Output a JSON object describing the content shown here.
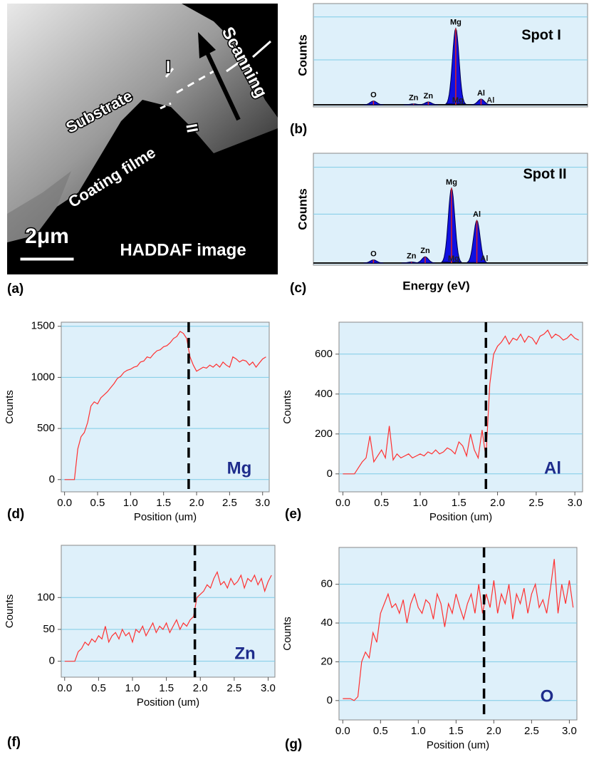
{
  "image_panel": {
    "panel_label": "(a)",
    "labels": [
      "Substrate",
      "Coating filme",
      "Scanning",
      "I",
      "II"
    ],
    "scale_bar": "2μm",
    "caption": "HADDAF image"
  },
  "chart_data": [
    {
      "type": "spectrum",
      "panel_label": "(b)",
      "title": "Spot I",
      "ylabel": "Counts",
      "color": "#1010e0",
      "xlim": [
        0,
        2.6
      ],
      "ylim": [
        0,
        100
      ],
      "peaks": [
        {
          "label": "O",
          "x": 0.57,
          "height": 4
        },
        {
          "label": "Zn",
          "x": 0.95,
          "height": 1
        },
        {
          "label": "Zn",
          "x": 1.09,
          "height": 3
        },
        {
          "label": "Mg",
          "x": 1.35,
          "height": 80
        },
        {
          "label": "Al",
          "x": 1.59,
          "height": 6
        }
      ],
      "markers": [
        {
          "label": "Mg",
          "x": 1.37
        },
        {
          "label": "Al",
          "x": 1.68
        }
      ]
    },
    {
      "type": "spectrum",
      "panel_label": "(c)",
      "title": "Spot II",
      "ylabel": "Counts",
      "xlabel": "Energy (eV)",
      "color": "#1010e0",
      "xlim": [
        0,
        2.6
      ],
      "ylim": [
        0,
        100
      ],
      "peaks": [
        {
          "label": "O",
          "x": 0.57,
          "height": 3
        },
        {
          "label": "Zn",
          "x": 0.93,
          "height": 1
        },
        {
          "label": "Zn",
          "x": 1.06,
          "height": 6
        },
        {
          "label": "Mg",
          "x": 1.31,
          "height": 72
        },
        {
          "label": "Al",
          "x": 1.55,
          "height": 41
        }
      ],
      "markers": [
        {
          "label": "Mg",
          "x": 1.33
        },
        {
          "label": "Al",
          "x": 1.62
        }
      ]
    },
    {
      "type": "line",
      "panel_label": "(d)",
      "element": "Mg",
      "xlabel": "Position (um)",
      "ylabel": "Counts",
      "color": "#ff3030",
      "grid": true,
      "boundary_x": 1.88,
      "xlim": [
        -0.05,
        3.1
      ],
      "ylim": [
        -120,
        1540
      ],
      "xticks": [
        {
          "value": 0,
          "label": "0.0"
        },
        0.5,
        {
          "value": 1,
          "label": "1.0"
        },
        1.5,
        {
          "value": 2,
          "label": "2.0"
        },
        2.5,
        {
          "value": 3,
          "label": "3.0"
        }
      ],
      "yticks": [
        0,
        500,
        1000,
        1500
      ],
      "x": [
        0,
        0.05,
        0.1,
        0.15,
        0.2,
        0.25,
        0.3,
        0.35,
        0.4,
        0.45,
        0.5,
        0.55,
        0.6,
        0.65,
        0.7,
        0.75,
        0.8,
        0.85,
        0.9,
        0.95,
        1,
        1.05,
        1.1,
        1.15,
        1.2,
        1.25,
        1.3,
        1.35,
        1.4,
        1.45,
        1.5,
        1.55,
        1.6,
        1.65,
        1.7,
        1.75,
        1.8,
        1.85,
        1.9,
        1.95,
        2,
        2.05,
        2.1,
        2.15,
        2.2,
        2.25,
        2.3,
        2.35,
        2.4,
        2.45,
        2.5,
        2.55,
        2.6,
        2.65,
        2.7,
        2.75,
        2.8,
        2.85,
        2.9,
        2.95,
        3,
        3.05
      ],
      "values": [
        0,
        0,
        0,
        0,
        300,
        420,
        460,
        560,
        720,
        760,
        740,
        800,
        830,
        860,
        900,
        940,
        990,
        1010,
        1050,
        1070,
        1080,
        1100,
        1110,
        1150,
        1160,
        1200,
        1190,
        1230,
        1260,
        1270,
        1300,
        1310,
        1340,
        1380,
        1400,
        1450,
        1430,
        1380,
        1200,
        1120,
        1060,
        1080,
        1100,
        1090,
        1120,
        1100,
        1130,
        1100,
        1150,
        1120,
        1100,
        1200,
        1180,
        1150,
        1170,
        1160,
        1120,
        1150,
        1100,
        1140,
        1180,
        1200
      ]
    },
    {
      "type": "line",
      "panel_label": "(e)",
      "element": "Al",
      "xlabel": "Position (um)",
      "ylabel": "Counts",
      "color": "#ff3030",
      "grid": true,
      "boundary_x": 1.85,
      "xlim": [
        -0.05,
        3.1
      ],
      "ylim": [
        -90,
        760
      ],
      "xticks": [
        {
          "value": 0,
          "label": "0.0"
        },
        0.5,
        {
          "value": 1,
          "label": "1.0"
        },
        1.5,
        {
          "value": 2,
          "label": "2.0"
        },
        2.5,
        {
          "value": 3,
          "label": "3.0"
        }
      ],
      "yticks": [
        0,
        200,
        400,
        600
      ],
      "x": [
        0,
        0.05,
        0.1,
        0.15,
        0.2,
        0.25,
        0.3,
        0.35,
        0.4,
        0.45,
        0.5,
        0.55,
        0.6,
        0.65,
        0.7,
        0.75,
        0.8,
        0.85,
        0.9,
        0.95,
        1,
        1.05,
        1.1,
        1.15,
        1.2,
        1.25,
        1.3,
        1.35,
        1.4,
        1.45,
        1.5,
        1.55,
        1.6,
        1.65,
        1.7,
        1.75,
        1.8,
        1.85,
        1.9,
        1.95,
        2,
        2.05,
        2.1,
        2.15,
        2.2,
        2.25,
        2.3,
        2.35,
        2.4,
        2.45,
        2.5,
        2.55,
        2.6,
        2.65,
        2.7,
        2.75,
        2.8,
        2.85,
        2.9,
        2.95,
        3,
        3.05
      ],
      "values": [
        0,
        0,
        0,
        0,
        30,
        60,
        80,
        190,
        60,
        90,
        120,
        80,
        240,
        70,
        100,
        80,
        90,
        100,
        80,
        90,
        100,
        90,
        110,
        100,
        120,
        100,
        110,
        130,
        120,
        100,
        160,
        140,
        90,
        200,
        120,
        80,
        220,
        80,
        450,
        600,
        640,
        660,
        690,
        650,
        680,
        670,
        700,
        660,
        690,
        680,
        650,
        690,
        700,
        720,
        680,
        700,
        690,
        670,
        680,
        700,
        680,
        670
      ]
    },
    {
      "type": "line",
      "panel_label": "(f)",
      "element": "Zn",
      "xlabel": "Position (um)",
      "ylabel": "Counts",
      "color": "#ff3030",
      "grid": true,
      "boundary_x": 1.92,
      "xlim": [
        -0.05,
        3.1
      ],
      "ylim": [
        -25,
        182
      ],
      "xticks": [
        {
          "value": 0,
          "label": "0.0"
        },
        0.5,
        {
          "value": 1,
          "label": "1.0"
        },
        1.5,
        {
          "value": 2,
          "label": "2.0"
        },
        2.5,
        {
          "value": 3,
          "label": "3.0"
        }
      ],
      "yticks": [
        0,
        50,
        100
      ],
      "x": [
        0,
        0.05,
        0.1,
        0.15,
        0.2,
        0.25,
        0.3,
        0.35,
        0.4,
        0.45,
        0.5,
        0.55,
        0.6,
        0.65,
        0.7,
        0.75,
        0.8,
        0.85,
        0.9,
        0.95,
        1,
        1.05,
        1.1,
        1.15,
        1.2,
        1.25,
        1.3,
        1.35,
        1.4,
        1.45,
        1.5,
        1.55,
        1.6,
        1.65,
        1.7,
        1.75,
        1.8,
        1.85,
        1.9,
        1.95,
        2,
        2.05,
        2.1,
        2.15,
        2.2,
        2.25,
        2.3,
        2.35,
        2.4,
        2.45,
        2.5,
        2.55,
        2.6,
        2.65,
        2.7,
        2.75,
        2.8,
        2.85,
        2.9,
        2.95,
        3,
        3.05
      ],
      "values": [
        0,
        0,
        0,
        0,
        15,
        20,
        30,
        25,
        35,
        30,
        40,
        35,
        55,
        30,
        40,
        45,
        35,
        50,
        40,
        45,
        30,
        50,
        45,
        55,
        40,
        50,
        60,
        45,
        55,
        50,
        60,
        45,
        55,
        65,
        50,
        60,
        55,
        65,
        70,
        100,
        105,
        110,
        120,
        115,
        130,
        140,
        120,
        125,
        115,
        130,
        120,
        125,
        135,
        115,
        130,
        125,
        135,
        120,
        130,
        110,
        125,
        135
      ]
    },
    {
      "type": "line",
      "panel_label": "(g)",
      "element": "O",
      "xlabel": "Position (um)",
      "ylabel": "Counts",
      "color": "#ff3030",
      "grid": true,
      "boundary_x": 1.87,
      "xlim": [
        -0.05,
        3.1
      ],
      "ylim": [
        -10,
        79
      ],
      "xticks": [
        {
          "value": 0,
          "label": "0.0"
        },
        0.5,
        {
          "value": 1,
          "label": "1.0"
        },
        1.5,
        {
          "value": 2,
          "label": "2.0"
        },
        2.5,
        {
          "value": 3,
          "label": "3.0"
        }
      ],
      "yticks": [
        0,
        20,
        40,
        60
      ],
      "x": [
        0,
        0.05,
        0.1,
        0.15,
        0.2,
        0.25,
        0.3,
        0.35,
        0.4,
        0.45,
        0.5,
        0.55,
        0.6,
        0.65,
        0.7,
        0.75,
        0.8,
        0.85,
        0.9,
        0.95,
        1,
        1.05,
        1.1,
        1.15,
        1.2,
        1.25,
        1.3,
        1.35,
        1.4,
        1.45,
        1.5,
        1.55,
        1.6,
        1.65,
        1.7,
        1.75,
        1.8,
        1.85,
        1.9,
        1.95,
        2,
        2.05,
        2.1,
        2.15,
        2.2,
        2.25,
        2.3,
        2.35,
        2.4,
        2.45,
        2.5,
        2.55,
        2.6,
        2.65,
        2.7,
        2.75,
        2.8,
        2.85,
        2.9,
        2.95,
        3,
        3.05
      ],
      "values": [
        1,
        1,
        1,
        0,
        2,
        20,
        25,
        22,
        35,
        30,
        45,
        50,
        55,
        48,
        50,
        45,
        52,
        40,
        50,
        55,
        48,
        45,
        52,
        50,
        42,
        55,
        50,
        38,
        50,
        45,
        55,
        48,
        42,
        50,
        55,
        45,
        60,
        45,
        55,
        48,
        62,
        45,
        55,
        50,
        60,
        42,
        55,
        50,
        58,
        45,
        55,
        60,
        48,
        52,
        45,
        58,
        73,
        45,
        60,
        50,
        62,
        48
      ]
    }
  ]
}
